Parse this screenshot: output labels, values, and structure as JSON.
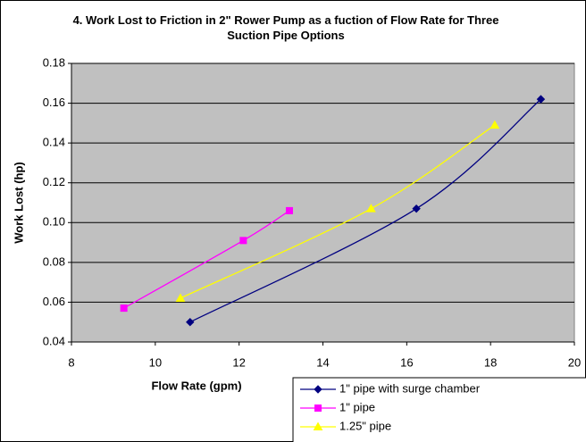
{
  "chart_data": {
    "type": "scatter",
    "title": "4.  Work Lost to Friction in 2\" Rower Pump as a fuction of Flow Rate for Three Suction Pipe Options",
    "x_label": "Flow Rate (gpm)",
    "y_label": "Work Lost (hp)",
    "xlim": [
      8,
      20
    ],
    "xticks": [
      8,
      10,
      12,
      14,
      16,
      18,
      20
    ],
    "ylim": [
      0.04,
      0.18
    ],
    "yticks": [
      0.04,
      0.06,
      0.08,
      {
        "value": 0.1,
        "label": "0.10"
      },
      0.12,
      0.14,
      0.16,
      0.18
    ],
    "grid": true,
    "series": [
      {
        "name": "1\" pipe with surge chamber",
        "color": "#000080",
        "marker": "diamond",
        "x": [
          10.83,
          16.23,
          19.2
        ],
        "values": [
          0.05,
          0.107,
          0.162
        ]
      },
      {
        "name": "1\" pipe",
        "color": "#ff00ff",
        "marker": "square",
        "x": [
          9.25,
          12.1,
          13.2
        ],
        "values": [
          0.057,
          0.091,
          0.106
        ]
      },
      {
        "name": "1.25\" pipe",
        "color": "#ffff00",
        "marker": "triangle",
        "x": [
          10.6,
          15.15,
          18.1
        ],
        "values": [
          0.062,
          0.107,
          0.149
        ]
      }
    ]
  }
}
